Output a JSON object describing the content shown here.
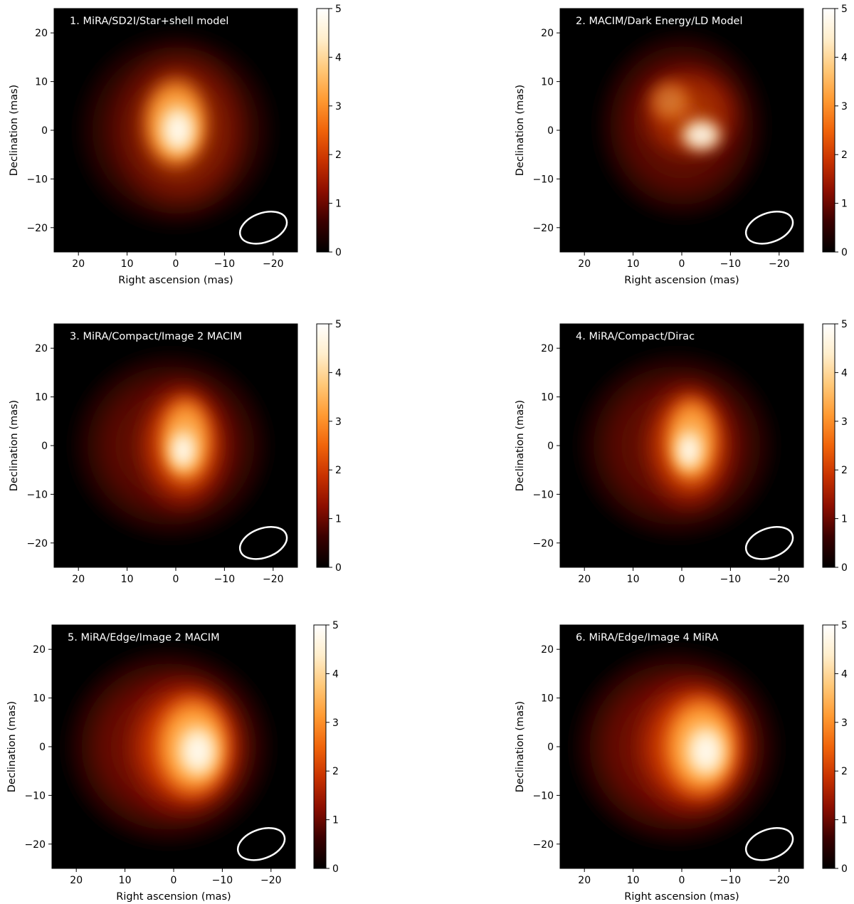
{
  "colors": {
    "colormap": [
      "#000000",
      "#3a0000",
      "#8c0e00",
      "#c83200",
      "#f0640a",
      "#ff9a32",
      "#ffc878",
      "#ffeecc",
      "#ffffff"
    ],
    "beam_outline": "#ffffff",
    "panel_title": "#ffffff"
  },
  "chart_data": [
    {
      "type": "heatmap",
      "title": "1. MiRA/SD2I/Star+shell model",
      "xlabel": "Right ascension (mas)",
      "ylabel": "Declination (mas)",
      "xlim": [
        25,
        -25
      ],
      "ylim": [
        -25,
        25
      ],
      "x_ticks": [
        "20",
        "10",
        "0",
        "−10",
        "−20"
      ],
      "y_ticks": [
        "20",
        "10",
        "0",
        "−10",
        "−20"
      ],
      "colorbar": {
        "min": 0,
        "max": 5,
        "ticks": [
          "0",
          "1",
          "2",
          "3",
          "4",
          "5"
        ]
      },
      "beam": {
        "ra": -18,
        "dec": -20,
        "width": 10,
        "height": 6,
        "angle": -20
      }
    },
    {
      "type": "heatmap",
      "title": "2. MACIM/Dark Energy/LD Model",
      "xlabel": "Right ascension (mas)",
      "ylabel": "Declination (mas)",
      "xlim": [
        25,
        -25
      ],
      "ylim": [
        -25,
        25
      ],
      "x_ticks": [
        "20",
        "10",
        "0",
        "−10",
        "−20"
      ],
      "y_ticks": [
        "20",
        "10",
        "0",
        "−10",
        "−20"
      ],
      "colorbar": {
        "min": 0,
        "max": 5,
        "ticks": [
          "0",
          "1",
          "2",
          "3",
          "4",
          "5"
        ]
      },
      "beam": {
        "ra": -18,
        "dec": -20,
        "width": 10,
        "height": 6,
        "angle": -20
      }
    },
    {
      "type": "heatmap",
      "title": "3. MiRA/Compact/Image 2 MACIM",
      "xlabel": "",
      "ylabel": "Declination (mas)",
      "xlim": [
        25,
        -25
      ],
      "ylim": [
        -25,
        25
      ],
      "x_ticks": [
        "20",
        "10",
        "0",
        "−10",
        "−20"
      ],
      "y_ticks": [
        "20",
        "10",
        "0",
        "−10",
        "−20"
      ],
      "colorbar": {
        "min": 0,
        "max": 5,
        "ticks": [
          "0",
          "1",
          "2",
          "3",
          "4",
          "5"
        ]
      },
      "beam": {
        "ra": -18,
        "dec": -20,
        "width": 10,
        "height": 6,
        "angle": -20
      }
    },
    {
      "type": "heatmap",
      "title": "4. MiRA/Compact/Dirac",
      "xlabel": "",
      "ylabel": "Declination (mas)",
      "xlim": [
        25,
        -25
      ],
      "ylim": [
        -25,
        25
      ],
      "x_ticks": [
        "20",
        "10",
        "0",
        "−10",
        "−20"
      ],
      "y_ticks": [
        "20",
        "10",
        "0",
        "−10",
        "−20"
      ],
      "colorbar": {
        "min": 0,
        "max": 5,
        "ticks": [
          "0",
          "1",
          "2",
          "3",
          "4",
          "5"
        ]
      },
      "beam": {
        "ra": -18,
        "dec": -20,
        "width": 10,
        "height": 6,
        "angle": -20
      }
    },
    {
      "type": "heatmap",
      "title": "5. MiRA/Edge/Image 2 MACIM",
      "xlabel": "Right ascension (mas)",
      "ylabel": "Declination (mas)",
      "xlim": [
        25,
        -25
      ],
      "ylim": [
        -25,
        25
      ],
      "x_ticks": [
        "20",
        "10",
        "0",
        "−10",
        "−20"
      ],
      "y_ticks": [
        "20",
        "10",
        "0",
        "−10",
        "−20"
      ],
      "colorbar": {
        "min": 0,
        "max": 5,
        "ticks": [
          "0",
          "1",
          "2",
          "3",
          "4",
          "5"
        ]
      },
      "beam": {
        "ra": -18,
        "dec": -20,
        "width": 10,
        "height": 6,
        "angle": -20
      }
    },
    {
      "type": "heatmap",
      "title": "6. MiRA/Edge/Image 4 MiRA",
      "xlabel": "Right ascension (mas)",
      "ylabel": "Declination (mas)",
      "xlim": [
        25,
        -25
      ],
      "ylim": [
        -25,
        25
      ],
      "x_ticks": [
        "20",
        "10",
        "0",
        "−10",
        "−20"
      ],
      "y_ticks": [
        "20",
        "10",
        "0",
        "−10",
        "−20"
      ],
      "colorbar": {
        "min": 0,
        "max": 5,
        "ticks": [
          "0",
          "1",
          "2",
          "3",
          "4",
          "5"
        ]
      },
      "beam": {
        "ra": -18,
        "dec": -20,
        "width": 10,
        "height": 6,
        "angle": -20
      }
    }
  ]
}
